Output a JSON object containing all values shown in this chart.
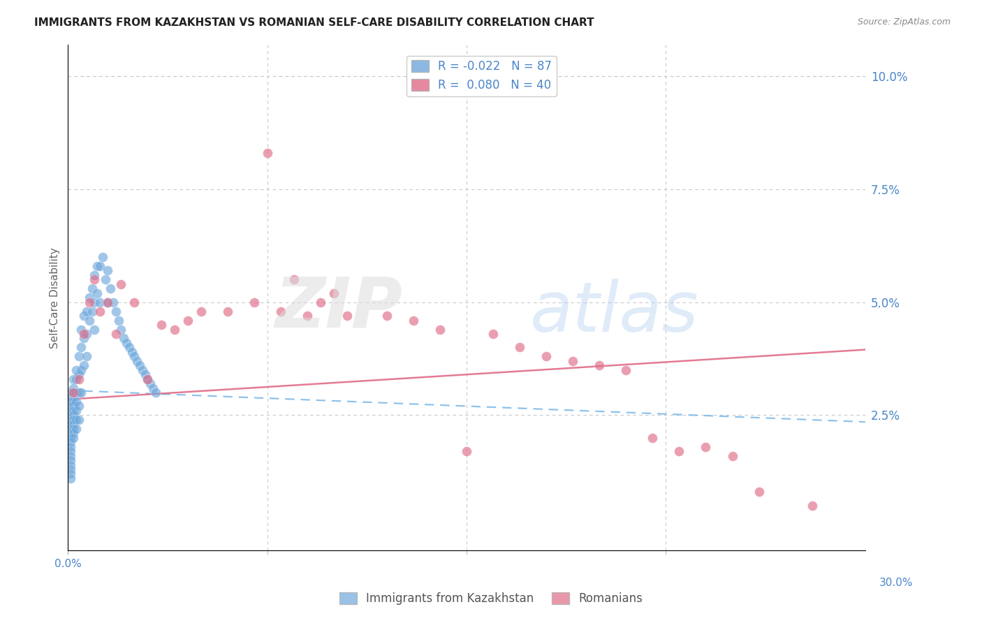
{
  "title": "IMMIGRANTS FROM KAZAKHSTAN VS ROMANIAN SELF-CARE DISABILITY CORRELATION CHART",
  "source": "Source: ZipAtlas.com",
  "ylabel": "Self-Care Disability",
  "right_yticks": [
    0.0,
    0.025,
    0.05,
    0.075,
    0.1
  ],
  "right_yticklabels": [
    "",
    "2.5%",
    "5.0%",
    "7.5%",
    "10.0%"
  ],
  "xlim": [
    0.0,
    0.3
  ],
  "ylim": [
    -0.005,
    0.107
  ],
  "legend_R_blue": "-0.022",
  "legend_N_blue": "87",
  "legend_R_pink": "0.080",
  "legend_N_pink": "40",
  "blue_color": "#6fa8dc",
  "pink_color": "#e06c88",
  "watermark_zip": "ZIP",
  "watermark_atlas": "atlas",
  "background_color": "#ffffff",
  "grid_color": "#c8c8c8",
  "blue_scatter_x": [
    0.001,
    0.001,
    0.001,
    0.001,
    0.001,
    0.001,
    0.001,
    0.001,
    0.001,
    0.001,
    0.001,
    0.001,
    0.001,
    0.001,
    0.001,
    0.001,
    0.001,
    0.001,
    0.001,
    0.001,
    0.002,
    0.002,
    0.002,
    0.002,
    0.002,
    0.002,
    0.002,
    0.002,
    0.002,
    0.002,
    0.002,
    0.002,
    0.003,
    0.003,
    0.003,
    0.003,
    0.003,
    0.003,
    0.003,
    0.004,
    0.004,
    0.004,
    0.004,
    0.004,
    0.005,
    0.005,
    0.005,
    0.005,
    0.006,
    0.006,
    0.006,
    0.007,
    0.007,
    0.007,
    0.008,
    0.008,
    0.009,
    0.009,
    0.01,
    0.01,
    0.01,
    0.011,
    0.011,
    0.012,
    0.012,
    0.013,
    0.014,
    0.015,
    0.015,
    0.016,
    0.017,
    0.018,
    0.019,
    0.02,
    0.021,
    0.022,
    0.023,
    0.024,
    0.025,
    0.026,
    0.027,
    0.028,
    0.029,
    0.03,
    0.031,
    0.032,
    0.033
  ],
  "blue_scatter_y": [
    0.03,
    0.029,
    0.028,
    0.027,
    0.026,
    0.025,
    0.024,
    0.023,
    0.022,
    0.021,
    0.02,
    0.019,
    0.018,
    0.017,
    0.016,
    0.015,
    0.014,
    0.013,
    0.012,
    0.011,
    0.033,
    0.031,
    0.03,
    0.028,
    0.027,
    0.026,
    0.025,
    0.024,
    0.023,
    0.022,
    0.021,
    0.02,
    0.035,
    0.033,
    0.03,
    0.028,
    0.026,
    0.024,
    0.022,
    0.038,
    0.034,
    0.03,
    0.027,
    0.024,
    0.044,
    0.04,
    0.035,
    0.03,
    0.047,
    0.042,
    0.036,
    0.048,
    0.043,
    0.038,
    0.051,
    0.046,
    0.053,
    0.048,
    0.056,
    0.05,
    0.044,
    0.058,
    0.052,
    0.058,
    0.05,
    0.06,
    0.055,
    0.057,
    0.05,
    0.053,
    0.05,
    0.048,
    0.046,
    0.044,
    0.042,
    0.041,
    0.04,
    0.039,
    0.038,
    0.037,
    0.036,
    0.035,
    0.034,
    0.033,
    0.032,
    0.031,
    0.03
  ],
  "pink_scatter_x": [
    0.002,
    0.004,
    0.006,
    0.008,
    0.01,
    0.012,
    0.015,
    0.018,
    0.02,
    0.025,
    0.03,
    0.035,
    0.04,
    0.045,
    0.05,
    0.06,
    0.07,
    0.08,
    0.09,
    0.1,
    0.075,
    0.085,
    0.095,
    0.105,
    0.12,
    0.13,
    0.14,
    0.15,
    0.16,
    0.17,
    0.18,
    0.19,
    0.2,
    0.21,
    0.22,
    0.23,
    0.24,
    0.25,
    0.26,
    0.28
  ],
  "pink_scatter_y": [
    0.03,
    0.033,
    0.043,
    0.05,
    0.055,
    0.048,
    0.05,
    0.043,
    0.054,
    0.05,
    0.033,
    0.045,
    0.044,
    0.046,
    0.048,
    0.048,
    0.05,
    0.048,
    0.047,
    0.052,
    0.083,
    0.055,
    0.05,
    0.047,
    0.047,
    0.046,
    0.044,
    0.017,
    0.043,
    0.04,
    0.038,
    0.037,
    0.036,
    0.035,
    0.02,
    0.017,
    0.018,
    0.016,
    0.008,
    0.005
  ]
}
